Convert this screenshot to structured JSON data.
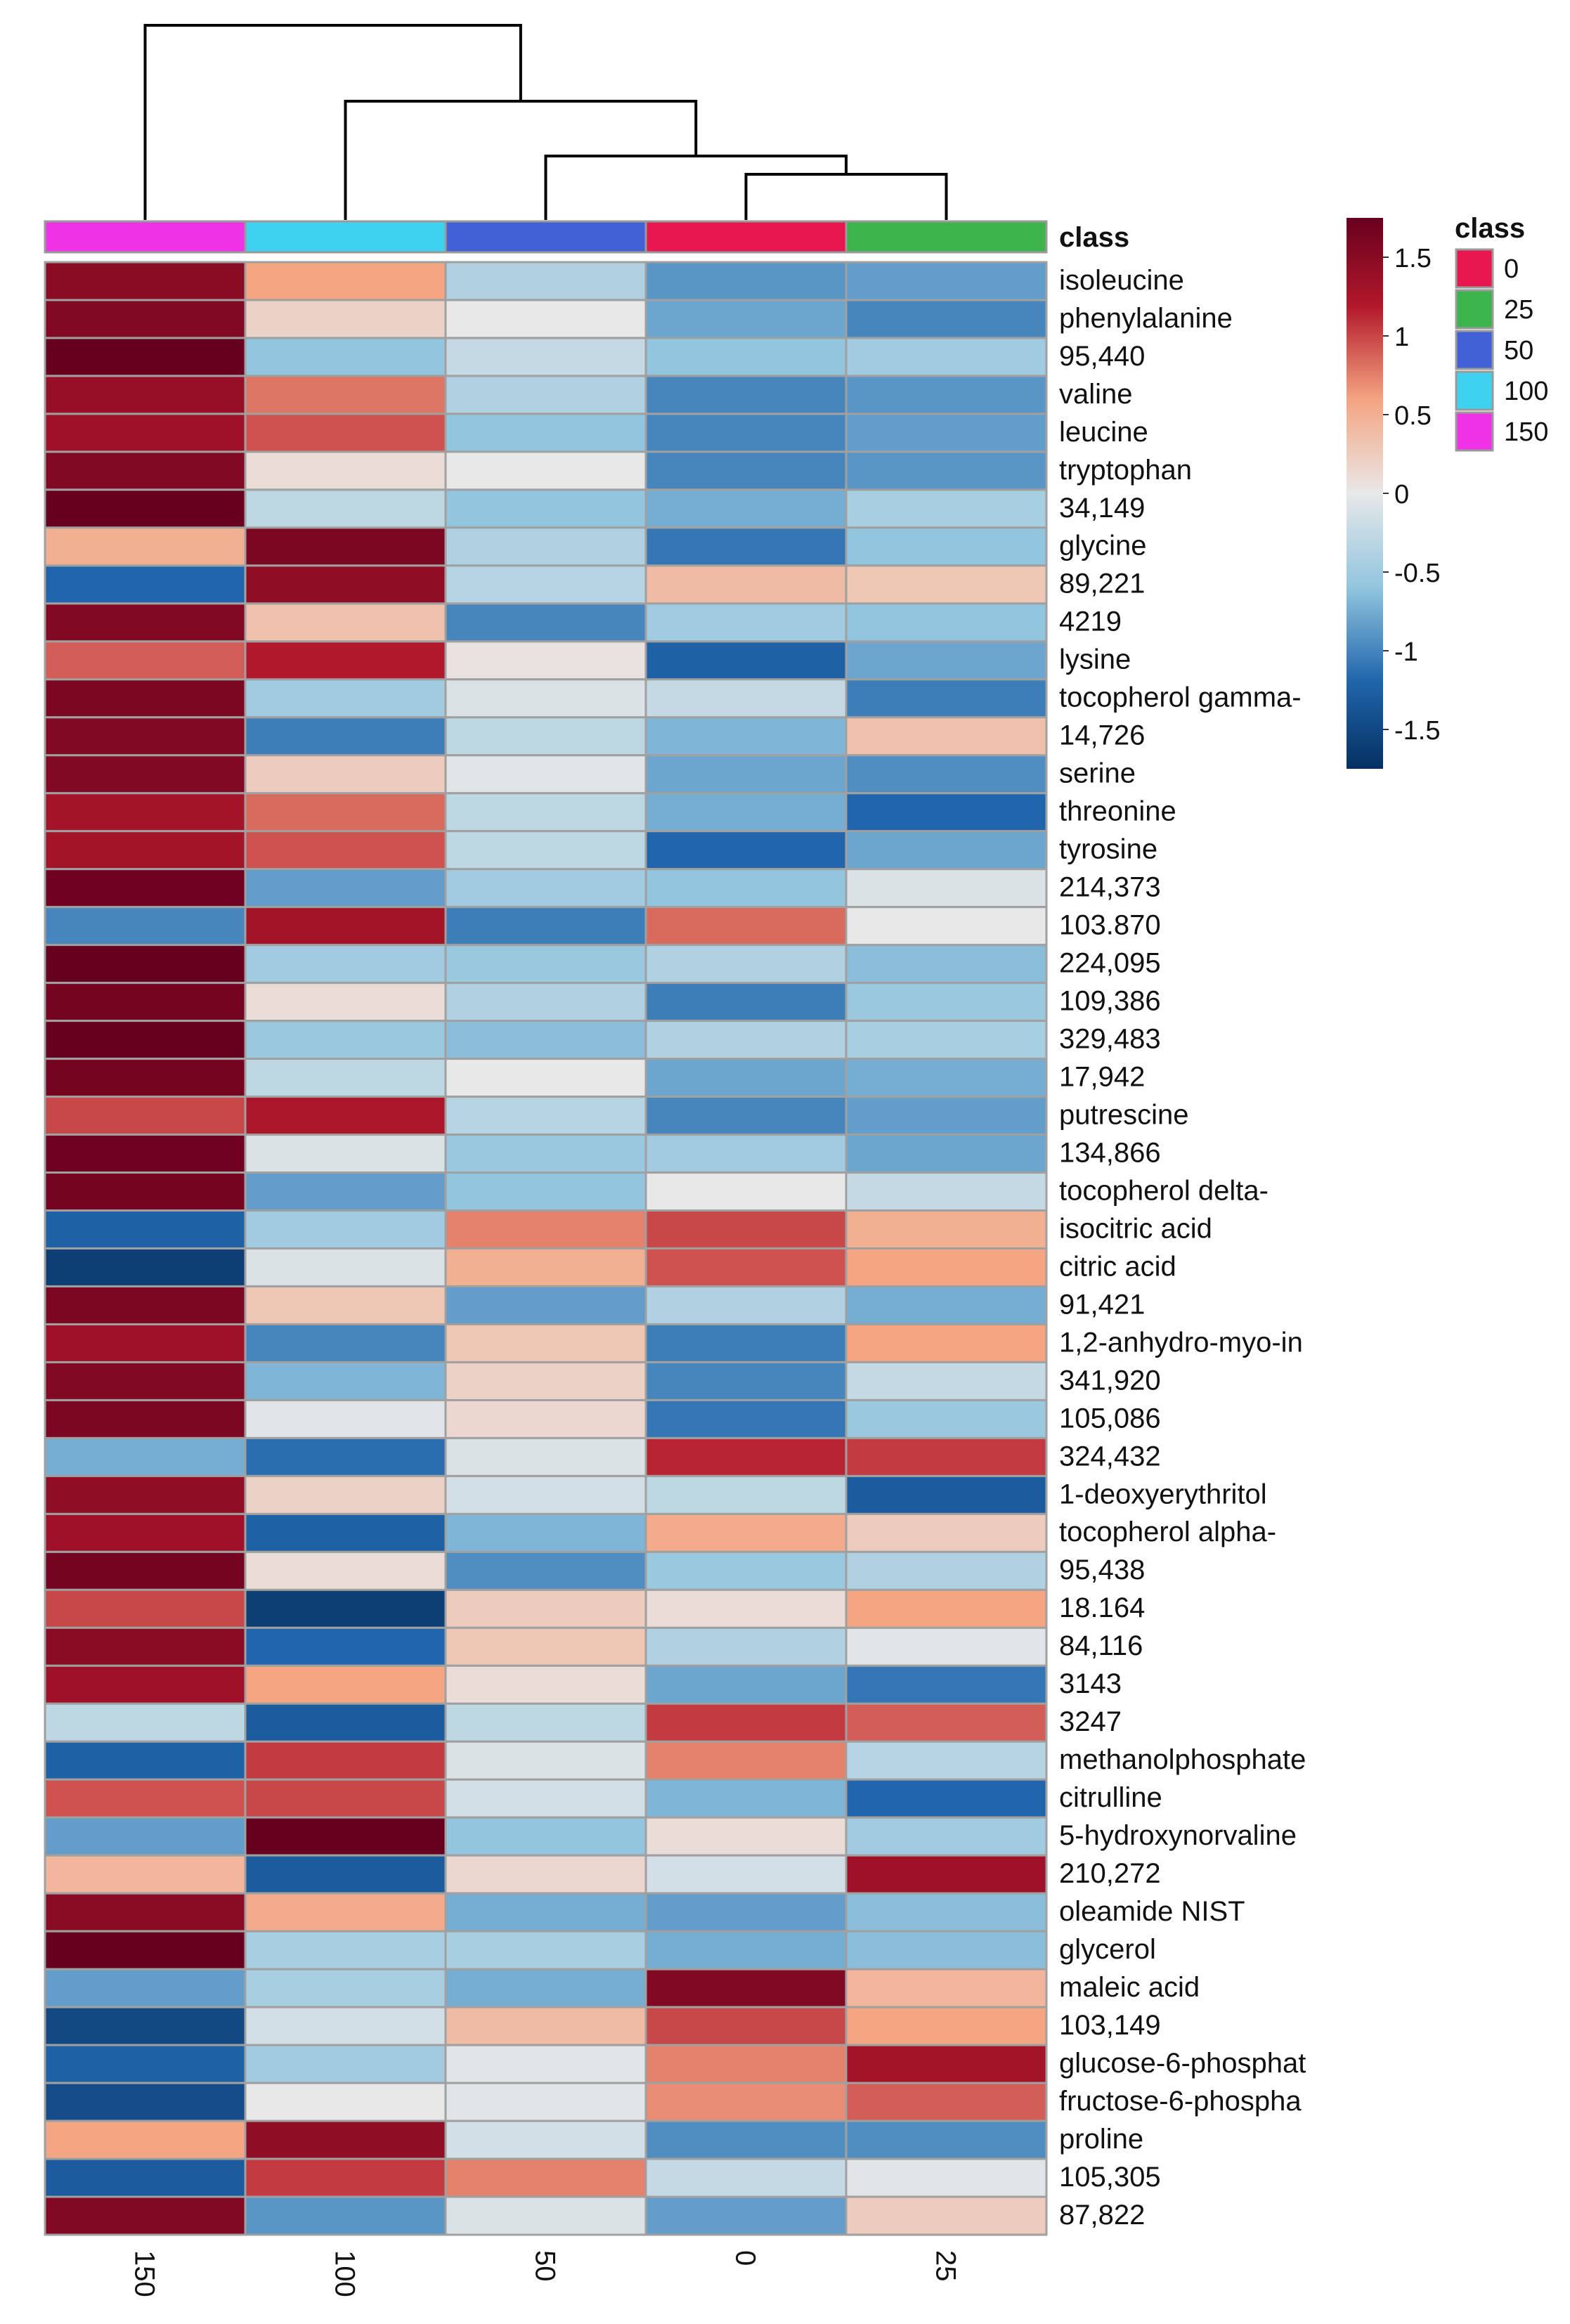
{
  "chart_data": {
    "type": "heatmap",
    "columns": [
      "150",
      "100",
      "50",
      "0",
      "25"
    ],
    "annotation_title": "class",
    "annotation_classes": [
      {
        "label": "0",
        "color": "#e8174f"
      },
      {
        "label": "25",
        "color": "#3cb44b"
      },
      {
        "label": "50",
        "color": "#4361d6"
      },
      {
        "label": "100",
        "color": "#3fd2f0"
      },
      {
        "label": "150",
        "color": "#f032e6"
      }
    ],
    "column_class_colors": [
      "#f032e6",
      "#3fd2f0",
      "#4361d6",
      "#e8174f",
      "#3cb44b"
    ],
    "colorbar_ticks": [
      "1.5",
      "1",
      "0.5",
      "0",
      "-0.5",
      "-1",
      "-1.5"
    ],
    "colorbar_range": [
      -1.75,
      1.75
    ],
    "rows": [
      "isoleucine",
      "phenylalanine",
      "95,440",
      "valine",
      "leucine",
      "tryptophan",
      "34,149",
      "glycine",
      "89,221",
      "4219",
      "lysine",
      "tocopherol gamma-",
      "14,726",
      "serine",
      "threonine",
      "tyrosine",
      "214,373",
      "103.870",
      "224,095",
      "109,386",
      "329,483",
      "17,942",
      "putrescine",
      "134,866",
      "tocopherol delta-",
      "isocitric acid",
      "citric acid",
      "91,421",
      "1,2-anhydro-myo-in",
      "341,920",
      "105,086",
      "324,432",
      "1-deoxyerythritol",
      "tocopherol alpha-",
      "95,438",
      "18.164",
      "84,116",
      "3143",
      "3247",
      "methanolphosphate",
      "citrulline",
      "5-hydroxynorvaline",
      "210,272",
      "oleamide NIST",
      "glycerol",
      "maleic acid",
      "103,149",
      "glucose-6-phosphat",
      "fructose-6-phospha",
      "proline",
      "105,305",
      "87,822"
    ],
    "values": [
      [
        1.5,
        0.6,
        -0.4,
        -0.9,
        -0.85
      ],
      [
        1.55,
        0.2,
        0.0,
        -0.8,
        -1.0
      ],
      [
        1.75,
        -0.6,
        -0.25,
        -0.6,
        -0.5
      ],
      [
        1.4,
        0.8,
        -0.4,
        -1.0,
        -0.9
      ],
      [
        1.35,
        0.95,
        -0.6,
        -1.0,
        -0.85
      ],
      [
        1.55,
        0.1,
        0.0,
        -1.0,
        -0.9
      ],
      [
        1.75,
        -0.3,
        -0.6,
        -0.75,
        -0.45
      ],
      [
        0.5,
        1.6,
        -0.4,
        -1.1,
        -0.6
      ],
      [
        -1.2,
        1.45,
        -0.35,
        0.4,
        0.3
      ],
      [
        1.55,
        0.35,
        -1.0,
        -0.5,
        -0.6
      ],
      [
        0.9,
        1.2,
        0.05,
        -1.25,
        -0.8
      ],
      [
        1.6,
        -0.5,
        -0.1,
        -0.25,
        -1.05
      ],
      [
        1.55,
        -1.05,
        -0.3,
        -0.7,
        0.35
      ],
      [
        1.55,
        0.25,
        -0.05,
        -0.8,
        -0.95
      ],
      [
        1.3,
        0.85,
        -0.3,
        -0.75,
        -1.2
      ],
      [
        1.3,
        0.95,
        -0.3,
        -1.2,
        -0.8
      ],
      [
        1.7,
        -0.85,
        -0.5,
        -0.6,
        -0.1
      ],
      [
        -1.0,
        1.3,
        -1.05,
        0.85,
        0.0
      ],
      [
        1.75,
        -0.5,
        -0.55,
        -0.4,
        -0.65
      ],
      [
        1.65,
        0.1,
        -0.4,
        -1.05,
        -0.55
      ],
      [
        1.75,
        -0.55,
        -0.65,
        -0.4,
        -0.45
      ],
      [
        1.65,
        -0.3,
        0.0,
        -0.8,
        -0.75
      ],
      [
        1.0,
        1.25,
        -0.35,
        -1.0,
        -0.85
      ],
      [
        1.7,
        -0.1,
        -0.55,
        -0.5,
        -0.8
      ],
      [
        1.65,
        -0.85,
        -0.6,
        0.0,
        -0.25
      ],
      [
        -1.25,
        -0.5,
        0.75,
        1.0,
        0.5
      ],
      [
        -1.6,
        -0.1,
        0.5,
        0.95,
        0.6
      ],
      [
        1.6,
        0.3,
        -0.85,
        -0.4,
        -0.75
      ],
      [
        1.35,
        -1.0,
        0.3,
        -1.05,
        0.6
      ],
      [
        1.55,
        -0.7,
        0.2,
        -1.0,
        -0.25
      ],
      [
        1.6,
        -0.05,
        0.15,
        -1.1,
        -0.55
      ],
      [
        -0.75,
        -1.15,
        -0.1,
        1.15,
        1.05
      ],
      [
        1.45,
        0.2,
        -0.15,
        -0.3,
        -1.3
      ],
      [
        1.35,
        -1.25,
        -0.7,
        0.55,
        0.25
      ],
      [
        1.65,
        0.1,
        -0.95,
        -0.55,
        -0.4
      ],
      [
        1.0,
        -1.6,
        0.25,
        0.1,
        0.6
      ],
      [
        1.5,
        -1.2,
        0.3,
        -0.4,
        -0.05
      ],
      [
        1.35,
        0.6,
        0.1,
        -0.8,
        -1.1
      ],
      [
        -0.3,
        -1.3,
        -0.3,
        1.05,
        0.9
      ],
      [
        -1.25,
        1.05,
        -0.1,
        0.75,
        -0.35
      ],
      [
        0.95,
        1.0,
        -0.15,
        -0.7,
        -1.2
      ],
      [
        -0.85,
        1.75,
        -0.6,
        0.1,
        -0.5
      ],
      [
        0.45,
        -1.3,
        0.15,
        -0.15,
        1.35
      ],
      [
        1.5,
        0.55,
        -0.75,
        -0.85,
        -0.65
      ],
      [
        1.75,
        -0.45,
        -0.45,
        -0.75,
        -0.65
      ],
      [
        -0.85,
        -0.45,
        -0.75,
        1.55,
        0.45
      ],
      [
        -1.5,
        -0.15,
        0.4,
        1.0,
        0.6
      ],
      [
        -1.25,
        -0.5,
        -0.05,
        0.75,
        1.3
      ],
      [
        -1.45,
        0.0,
        -0.05,
        0.7,
        0.9
      ],
      [
        0.6,
        1.45,
        -0.15,
        -0.95,
        -0.95
      ],
      [
        -1.3,
        1.05,
        0.75,
        -0.25,
        -0.05
      ],
      [
        1.55,
        -0.9,
        -0.1,
        -0.85,
        0.25
      ]
    ]
  }
}
